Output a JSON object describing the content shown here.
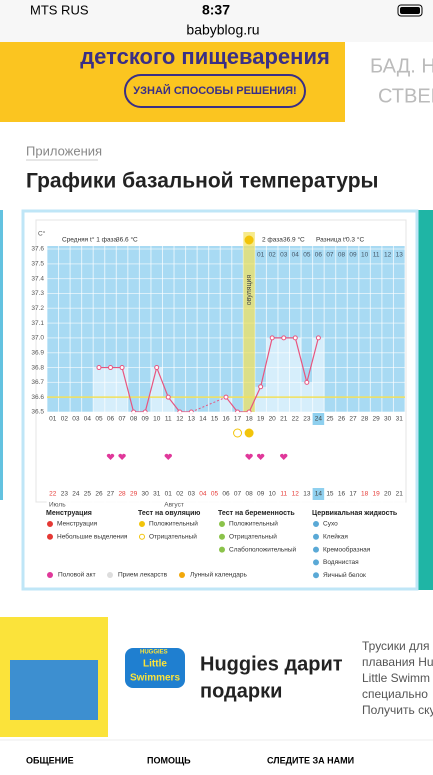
{
  "status_bar": {
    "carrier": "MTS RUS",
    "time": "8:37",
    "url": "babyblog.ru"
  },
  "banner": {
    "headline": "детского пищеварения",
    "button": "УЗНАЙ СПОСОБЫ РЕШЕНИЯ!",
    "side_text": [
      "БАД. НЕ",
      "СТВЕНН"
    ]
  },
  "breadcrumb": "Приложения",
  "title": "Графики базальной температуры",
  "chart_data": {
    "type": "line",
    "y_label": "С°",
    "phase1_label": "Средняя t° 1 фаза",
    "phase1_avg": "36.6 °C",
    "phase2_label": "2 фаза",
    "phase2_avg": "36.9 °C",
    "diff_label": "Разница t°",
    "diff": "0.3 °C",
    "ovulation_label": "овуляция",
    "categories": [
      "01",
      "02",
      "03",
      "04",
      "05",
      "06",
      "07",
      "08",
      "09",
      "10",
      "11",
      "12",
      "13",
      "14",
      "15",
      "16",
      "17",
      "18",
      "19",
      "20",
      "21",
      "22",
      "23",
      "24",
      "25",
      "26",
      "27",
      "28",
      "29",
      "30",
      "31"
    ],
    "dates": [
      "22",
      "23",
      "24",
      "25",
      "26",
      "27",
      "28",
      "29",
      "30",
      "31",
      "01",
      "02",
      "03",
      "04",
      "05",
      "06",
      "07",
      "08",
      "09",
      "10",
      "11",
      "12",
      "13",
      "14",
      "15",
      "16",
      "17",
      "18",
      "19",
      "20",
      "21"
    ],
    "date_colors": [
      "#e53935",
      "#444",
      "#444",
      "#444",
      "#444",
      "#444",
      "#e53935",
      "#e53935",
      "#444",
      "#444",
      "#444",
      "#444",
      "#444",
      "#e53935",
      "#e53935",
      "#444",
      "#444",
      "#444",
      "#444",
      "#444",
      "#e53935",
      "#e53935",
      "#444",
      "#444",
      "#444",
      "#444",
      "#444",
      "#e53935",
      "#e53935",
      "#444",
      "#444"
    ],
    "months": [
      "Июль",
      "Август"
    ],
    "phase2_days": [
      "01",
      "02",
      "03",
      "04",
      "05",
      "06",
      "07",
      "08",
      "09",
      "10",
      "11",
      "12",
      "13"
    ],
    "values": [
      null,
      null,
      null,
      null,
      36.8,
      36.8,
      36.8,
      36.5,
      36.5,
      36.8,
      36.6,
      36.5,
      36.5,
      null,
      null,
      36.6,
      36.5,
      36.5,
      36.67,
      37.0,
      37.0,
      37.0,
      36.7,
      37.0,
      null,
      null,
      null,
      null,
      null,
      null,
      null
    ],
    "color": "#e8557f",
    "bar_color": "#d6eefb",
    "background": "#a8daf3",
    "cover_color": "#f2e15a",
    "cover_line": 36.6,
    "ylim": [
      36.5,
      37.6
    ],
    "yticks": [
      36.5,
      36.6,
      36.7,
      36.8,
      36.9,
      {
        "value": 37,
        "label": "37.0"
      },
      37.1,
      37.2,
      37.3,
      37.4,
      37.5,
      37.6
    ],
    "ovulation_day": "18",
    "highlight_day": "24",
    "ovulation_tests": [
      {
        "day": "17",
        "result": "negative"
      },
      {
        "day": "18",
        "result": "positive"
      }
    ],
    "intercourse_days": [
      "06",
      "07",
      "11",
      "18",
      "19",
      "21"
    ]
  },
  "legend": {
    "groups": [
      {
        "title": "Менструация",
        "items": [
          "Менструация",
          "Небольшие выделения"
        ]
      },
      {
        "title": "Тест на овуляцию",
        "items": [
          "Положительный",
          "Отрицательный"
        ]
      },
      {
        "title": "Тест на беременность",
        "items": [
          "Положительный",
          "Отрицательный",
          "Слабоположительный"
        ]
      },
      {
        "title": "Цервикальная жидкость",
        "items": [
          "Сухо",
          "Клейкая",
          "Кремообразная",
          "Водянистая",
          "Яичный белок"
        ]
      }
    ],
    "bottom": [
      "Половой акт",
      "Прием лекарств",
      "Лунный календарь"
    ]
  },
  "ad": {
    "logo": [
      "HUGGIES",
      "Little",
      "Swimmers"
    ],
    "headline": [
      "Huggies дарит",
      "подарки"
    ],
    "side_text": [
      "Трусики для",
      "плавания Hu",
      "Little Swimm",
      "специально",
      "Получить ску"
    ]
  },
  "footer": [
    "ОБЩЕНИЕ",
    "ПОМОЩЬ",
    "СЛЕДИТЕ ЗА НАМИ"
  ]
}
